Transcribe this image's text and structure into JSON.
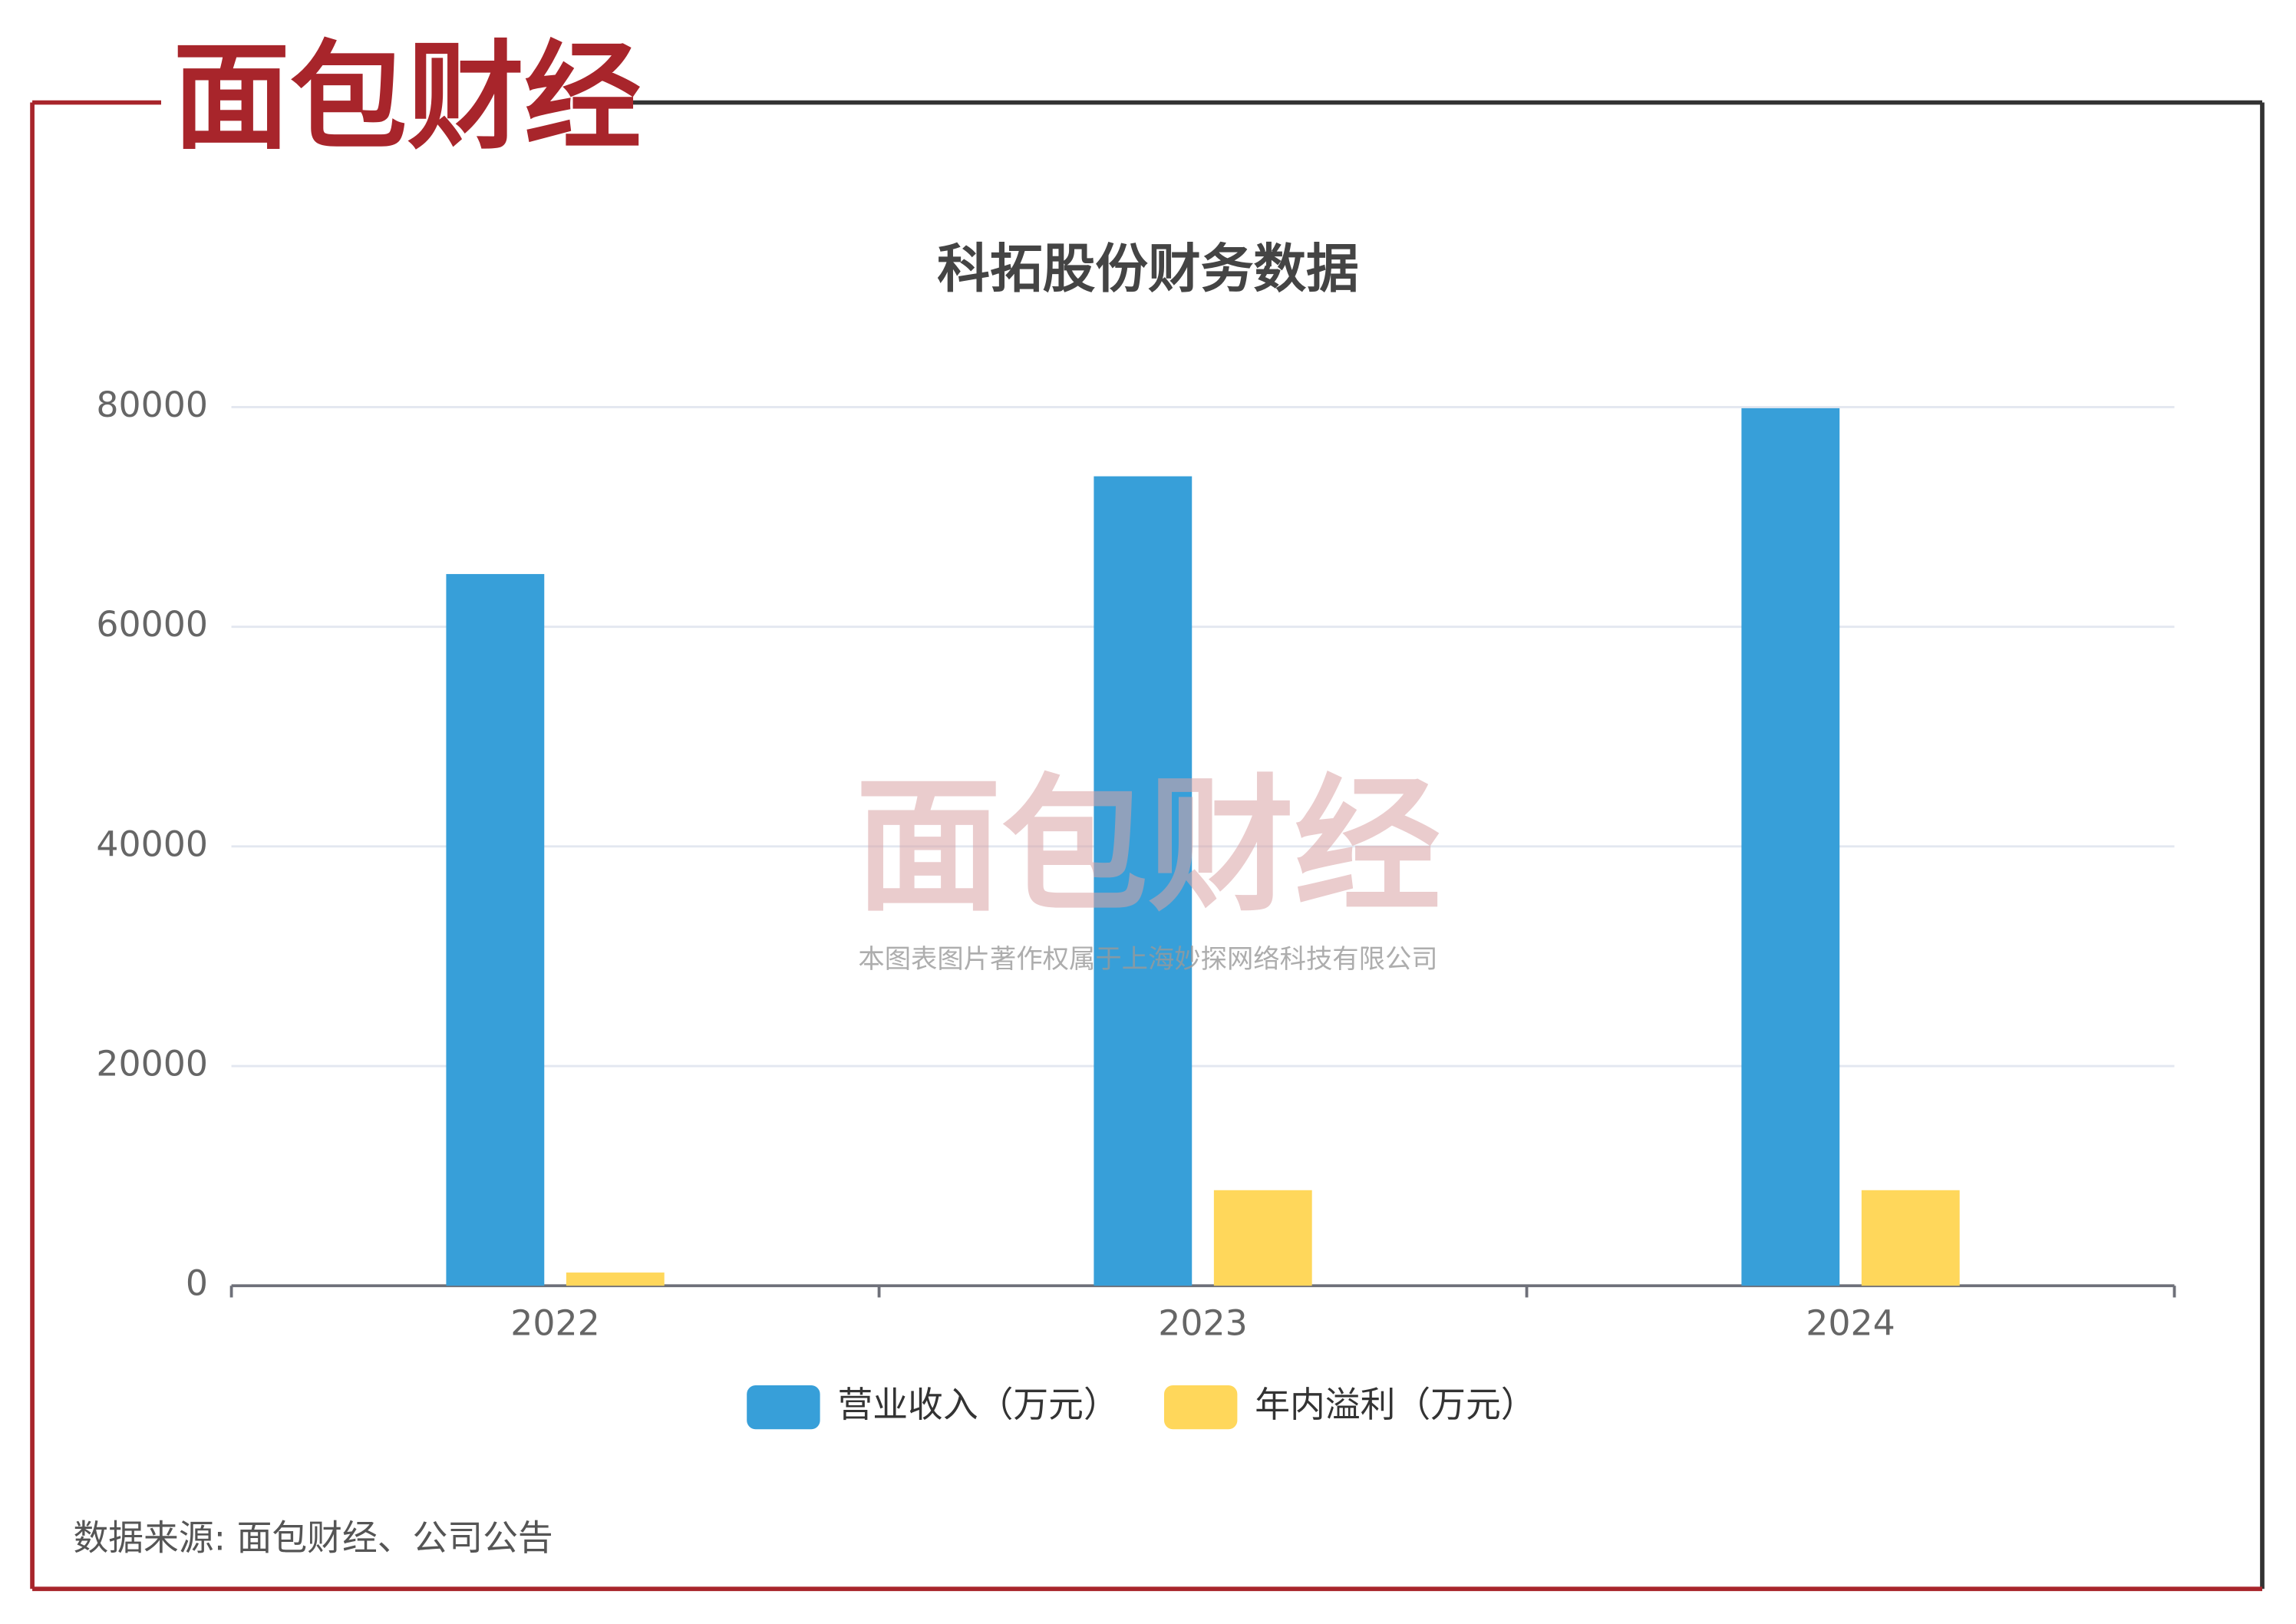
{
  "logo": "面包财经",
  "watermark": {
    "logo": "面包财经",
    "text": "本图表图片著作权属于上海妙探网络科技有限公司"
  },
  "source": "数据来源: 面包财经、公司公告",
  "chart_data": {
    "type": "bar",
    "title": "科拓股份财务数据",
    "categories": [
      "2022",
      "2023",
      "2024"
    ],
    "series": [
      {
        "name": "营业收入（万元）",
        "color": "#379fd9",
        "values": [
          64800,
          73700,
          79900
        ]
      },
      {
        "name": "年内溢利（万元）",
        "color": "#ffd75b",
        "values": [
          1200,
          8700,
          8700
        ]
      }
    ],
    "ylim": [
      0,
      80000
    ],
    "yticks": [
      0,
      20000,
      40000,
      60000,
      80000
    ],
    "grid": true,
    "legend": "bottom"
  }
}
